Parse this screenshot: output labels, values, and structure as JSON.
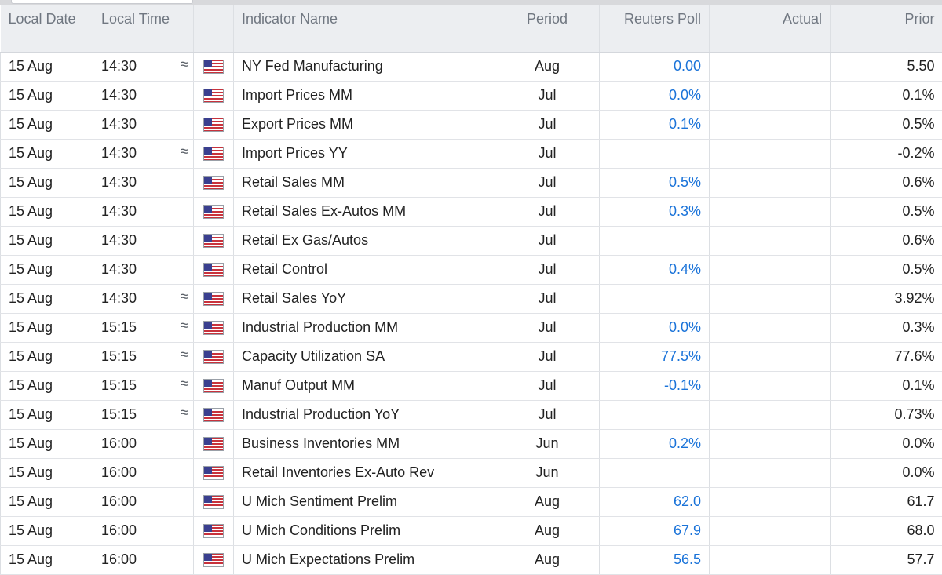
{
  "columns": {
    "local_date": "Local Date",
    "local_time": "Local Time",
    "indicator_name": "Indicator Name",
    "period": "Period",
    "reuters_poll": "Reuters Poll",
    "actual": "Actual",
    "prior": "Prior"
  },
  "icons": {
    "approx": "≈",
    "flag": "us-flag-icon"
  },
  "colors": {
    "poll_text": "#1a73d9",
    "header_bg": "#eceef1"
  },
  "rows": [
    {
      "date": "15 Aug",
      "time": "14:30",
      "approx": true,
      "name": "NY Fed Manufacturing",
      "period": "Aug",
      "poll": "0.00",
      "actual": "",
      "prior": "5.50"
    },
    {
      "date": "15 Aug",
      "time": "14:30",
      "approx": false,
      "name": "Import Prices MM",
      "period": "Jul",
      "poll": "0.0%",
      "actual": "",
      "prior": "0.1%"
    },
    {
      "date": "15 Aug",
      "time": "14:30",
      "approx": false,
      "name": "Export Prices MM",
      "period": "Jul",
      "poll": "0.1%",
      "actual": "",
      "prior": "0.5%"
    },
    {
      "date": "15 Aug",
      "time": "14:30",
      "approx": true,
      "name": "Import Prices YY",
      "period": "Jul",
      "poll": "",
      "actual": "",
      "prior": "-0.2%"
    },
    {
      "date": "15 Aug",
      "time": "14:30",
      "approx": false,
      "name": "Retail Sales MM",
      "period": "Jul",
      "poll": "0.5%",
      "actual": "",
      "prior": "0.6%"
    },
    {
      "date": "15 Aug",
      "time": "14:30",
      "approx": false,
      "name": "Retail Sales Ex-Autos MM",
      "period": "Jul",
      "poll": "0.3%",
      "actual": "",
      "prior": "0.5%"
    },
    {
      "date": "15 Aug",
      "time": "14:30",
      "approx": false,
      "name": "Retail Ex Gas/Autos",
      "period": "Jul",
      "poll": "",
      "actual": "",
      "prior": "0.6%"
    },
    {
      "date": "15 Aug",
      "time": "14:30",
      "approx": false,
      "name": "Retail Control",
      "period": "Jul",
      "poll": "0.4%",
      "actual": "",
      "prior": "0.5%"
    },
    {
      "date": "15 Aug",
      "time": "14:30",
      "approx": true,
      "name": "Retail Sales YoY",
      "period": "Jul",
      "poll": "",
      "actual": "",
      "prior": "3.92%"
    },
    {
      "date": "15 Aug",
      "time": "15:15",
      "approx": true,
      "name": "Industrial Production MM",
      "period": "Jul",
      "poll": "0.0%",
      "actual": "",
      "prior": "0.3%"
    },
    {
      "date": "15 Aug",
      "time": "15:15",
      "approx": true,
      "name": "Capacity Utilization SA",
      "period": "Jul",
      "poll": "77.5%",
      "actual": "",
      "prior": "77.6%"
    },
    {
      "date": "15 Aug",
      "time": "15:15",
      "approx": true,
      "name": "Manuf Output MM",
      "period": "Jul",
      "poll": "-0.1%",
      "actual": "",
      "prior": "0.1%"
    },
    {
      "date": "15 Aug",
      "time": "15:15",
      "approx": true,
      "name": "Industrial Production YoY",
      "period": "Jul",
      "poll": "",
      "actual": "",
      "prior": "0.73%"
    },
    {
      "date": "15 Aug",
      "time": "16:00",
      "approx": false,
      "name": "Business Inventories MM",
      "period": "Jun",
      "poll": "0.2%",
      "actual": "",
      "prior": "0.0%"
    },
    {
      "date": "15 Aug",
      "time": "16:00",
      "approx": false,
      "name": "Retail Inventories Ex-Auto Rev",
      "period": "Jun",
      "poll": "",
      "actual": "",
      "prior": "0.0%"
    },
    {
      "date": "15 Aug",
      "time": "16:00",
      "approx": false,
      "name": "U Mich Sentiment Prelim",
      "period": "Aug",
      "poll": "62.0",
      "actual": "",
      "prior": "61.7"
    },
    {
      "date": "15 Aug",
      "time": "16:00",
      "approx": false,
      "name": "U Mich Conditions Prelim",
      "period": "Aug",
      "poll": "67.9",
      "actual": "",
      "prior": "68.0"
    },
    {
      "date": "15 Aug",
      "time": "16:00",
      "approx": false,
      "name": "U Mich Expectations Prelim",
      "period": "Aug",
      "poll": "56.5",
      "actual": "",
      "prior": "57.7"
    }
  ]
}
